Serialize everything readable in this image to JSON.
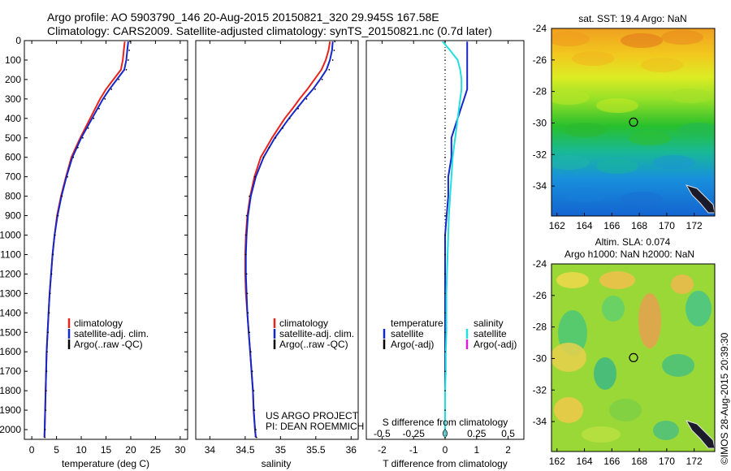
{
  "header": {
    "line1": "Argo profile: AO 5903790_146 20-Aug-2015 20150821_320 29.945S 167.58E",
    "line2": "Climatology: CARS2009. Satellite-adjusted climatology: synTS_20150821.nc (0.7d later)"
  },
  "credit": "©IMOS 28-Aug-2015 20:39:30",
  "colors": {
    "climatology": "#e8231c",
    "satellite": "#1428c8",
    "argo": "#000000",
    "sal_satellite": "#22dede",
    "sal_argo": "#d81cd8"
  },
  "chart_data": [
    {
      "type": "line",
      "xlabel": "temperature (deg C)",
      "xlim": [
        -1.5,
        31.5
      ],
      "xticks": [
        0,
        5,
        10,
        15,
        20,
        25,
        30
      ],
      "ylim": [
        2050,
        0
      ],
      "yticks": [
        0,
        100,
        200,
        300,
        400,
        500,
        600,
        700,
        800,
        900,
        1000,
        1100,
        1200,
        1300,
        1400,
        1500,
        1600,
        1700,
        1800,
        1900,
        2000
      ],
      "depth": [
        5,
        50,
        100,
        150,
        200,
        250,
        300,
        350,
        400,
        450,
        500,
        550,
        600,
        700,
        800,
        900,
        1000,
        1100,
        1200,
        1300,
        1400,
        1500,
        1600,
        1700,
        1800,
        1900,
        2000,
        2040
      ],
      "series": [
        {
          "name": "climatology",
          "key": "climatology",
          "style": "line",
          "values": [
            18.8,
            18.6,
            18.4,
            18.0,
            16.5,
            15.0,
            13.8,
            12.8,
            11.8,
            10.8,
            9.8,
            8.9,
            8.0,
            6.9,
            5.9,
            5.1,
            4.6,
            4.2,
            3.9,
            3.6,
            3.4,
            3.2,
            3.0,
            2.9,
            2.8,
            2.7,
            2.6,
            2.55
          ]
        },
        {
          "name": "satellite-adj. clim.",
          "key": "satellite",
          "style": "line",
          "values": [
            19.5,
            19.3,
            19.1,
            18.7,
            17.2,
            15.7,
            14.4,
            13.3,
            12.2,
            11.1,
            10.0,
            9.1,
            8.2,
            7.0,
            6.0,
            5.2,
            4.6,
            4.2,
            3.9,
            3.6,
            3.4,
            3.2,
            3.0,
            2.9,
            2.8,
            2.7,
            2.6,
            2.55
          ]
        },
        {
          "name": "Argo(..raw -QC)",
          "key": "argo",
          "style": "dots",
          "values": [
            19.9,
            19.7,
            19.5,
            19.1,
            17.6,
            16.1,
            14.8,
            13.6,
            12.5,
            11.4,
            10.3,
            9.3,
            8.4,
            7.2,
            6.1,
            5.3,
            4.7,
            4.3,
            4.0,
            3.7,
            3.5,
            3.3,
            3.1,
            3.0,
            2.9,
            2.8,
            2.7,
            2.65
          ]
        }
      ]
    },
    {
      "type": "line",
      "xlabel": "salinity",
      "xlim": [
        33.8,
        36.1
      ],
      "xticks": [
        34,
        34.5,
        35,
        35.5,
        36
      ],
      "ylim": [
        2050,
        0
      ],
      "depth": [
        5,
        50,
        100,
        150,
        200,
        250,
        300,
        350,
        400,
        450,
        500,
        550,
        600,
        700,
        800,
        900,
        1000,
        1100,
        1200,
        1300,
        1400,
        1500,
        1600,
        1700,
        1800,
        1900,
        2000,
        2040
      ],
      "series": [
        {
          "name": "climatology",
          "key": "climatology",
          "style": "line",
          "values": [
            35.7,
            35.68,
            35.64,
            35.58,
            35.48,
            35.38,
            35.27,
            35.17,
            35.06,
            34.97,
            34.88,
            34.8,
            34.72,
            34.63,
            34.57,
            34.53,
            34.51,
            34.5,
            34.5,
            34.51,
            34.53,
            34.55,
            34.57,
            34.59,
            34.61,
            34.62,
            34.64,
            34.65
          ]
        },
        {
          "name": "satellite-adj. clim.",
          "key": "satellite",
          "style": "line",
          "values": [
            35.74,
            35.73,
            35.7,
            35.65,
            35.56,
            35.46,
            35.34,
            35.23,
            35.12,
            35.02,
            34.92,
            34.84,
            34.76,
            34.65,
            34.58,
            34.54,
            34.52,
            34.51,
            34.51,
            34.52,
            34.53,
            34.55,
            34.57,
            34.59,
            34.61,
            34.62,
            34.64,
            34.65
          ]
        },
        {
          "name": "Argo(..raw -QC)",
          "key": "argo",
          "style": "dots",
          "values": [
            35.77,
            35.76,
            35.74,
            35.69,
            35.59,
            35.49,
            35.37,
            35.25,
            35.13,
            35.03,
            34.93,
            34.84,
            34.76,
            34.64,
            34.56,
            34.52,
            34.51,
            34.51,
            34.52,
            34.53,
            34.54,
            34.56,
            34.58,
            34.6,
            34.62,
            34.63,
            34.65,
            34.66
          ]
        }
      ]
    },
    {
      "type": "line",
      "xlabel": "T difference from climatology",
      "xlabel_top": "S difference from climatology",
      "xlim": [
        -2.5,
        2.5
      ],
      "xticks": [
        -2,
        -1,
        0,
        1,
        2
      ],
      "xticks_top": [
        -0.5,
        -0.25,
        0,
        0.25,
        0.5
      ],
      "ylim": [
        2050,
        0
      ],
      "legend_left_title": "temperature",
      "legend_right_title": "salinity",
      "depth": [
        5,
        50,
        100,
        150,
        200,
        250,
        300,
        350,
        400,
        450,
        500,
        600,
        700,
        800,
        900,
        1000,
        1100,
        1200,
        1300,
        1400,
        1500,
        1600,
        1700,
        1800,
        1900,
        2000,
        2040
      ],
      "series": [
        {
          "name": "satellite",
          "key": "satellite",
          "style": "line",
          "group": "temperature",
          "values": [
            0.7,
            0.7,
            0.7,
            0.7,
            0.7,
            0.7,
            0.6,
            0.5,
            0.4,
            0.3,
            0.2,
            0.2,
            0.1,
            0.1,
            0.05,
            0,
            0,
            0,
            0,
            0,
            0,
            0,
            0,
            0,
            0,
            0,
            0
          ]
        },
        {
          "name": "satellite",
          "key": "sal_satellite",
          "style": "line",
          "group": "salinity",
          "values": [
            -0.02,
            0.04,
            0.1,
            0.12,
            0.13,
            0.13,
            0.12,
            0.11,
            0.1,
            0.09,
            0.08,
            0.06,
            0.05,
            0.04,
            0.03,
            0.025,
            0.02,
            0.015,
            0.01,
            0.01,
            0.01,
            0.005,
            0.005,
            0,
            0,
            0,
            0
          ]
        },
        {
          "name": "Argo(-adj)",
          "key": "argo",
          "style": "dots",
          "group": "temperature",
          "values": [
            0,
            0,
            0,
            0,
            0,
            0,
            0,
            0,
            0,
            0,
            0,
            0,
            0,
            0,
            0,
            0,
            0,
            0,
            0,
            0,
            0,
            0,
            0,
            0,
            0,
            0,
            0
          ]
        }
      ]
    },
    {
      "type": "heatmap",
      "title": "sat. SST: 19.4 Argo: NaN",
      "xlim": [
        161.6,
        173.5
      ],
      "ylim": [
        -35.9,
        -24
      ],
      "xticks": [
        162,
        164,
        166,
        168,
        170,
        172
      ],
      "yticks": [
        -24,
        -26,
        -28,
        -30,
        -32,
        -34
      ],
      "marker": {
        "lon": 167.58,
        "lat": -29.945
      }
    },
    {
      "type": "heatmap",
      "title": "Altim. SLA: 0.074",
      "subtitle": "Argo h1000: NaN h2000: NaN",
      "xlim": [
        161.6,
        173.5
      ],
      "ylim": [
        -35.9,
        -24
      ],
      "xticks": [
        162,
        164,
        166,
        168,
        170,
        172
      ],
      "yticks": [
        -24,
        -26,
        -28,
        -30,
        -32,
        -34
      ],
      "marker": {
        "lon": 167.58,
        "lat": -29.945
      }
    }
  ],
  "legends": {
    "panel1": [
      "climatology",
      "satellite-adj. clim.",
      "Argo(..raw -QC)"
    ],
    "panel2": [
      "climatology",
      "satellite-adj. clim.",
      "Argo(..raw -QC)"
    ],
    "panel3_left": [
      "satellite",
      "Argo(-adj)"
    ],
    "panel3_right": [
      "satellite",
      "Argo(-adj)"
    ]
  },
  "project_label": {
    "line1": "US ARGO PROJECT",
    "line2": "PI: DEAN ROEMMICH"
  }
}
